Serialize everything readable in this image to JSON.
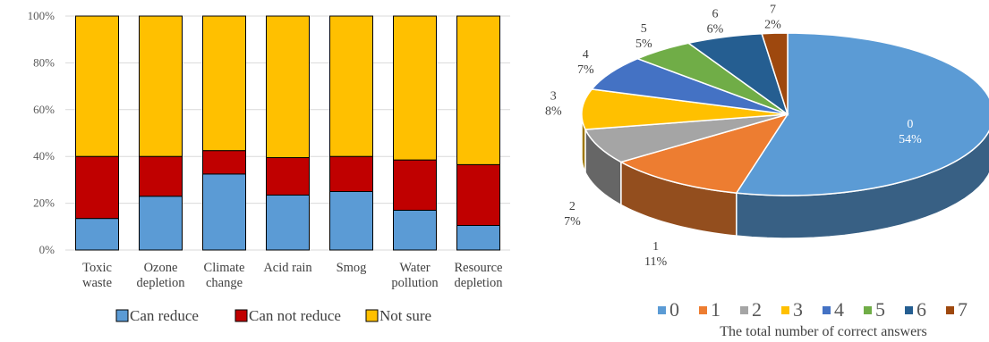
{
  "chart_data": [
    {
      "type": "bar",
      "stacked": true,
      "normalized": true,
      "categories": [
        [
          "Toxic",
          "waste"
        ],
        [
          "Ozone",
          "depletion"
        ],
        [
          "Climate",
          "change"
        ],
        [
          "Acid rain"
        ],
        [
          "Smog"
        ],
        [
          "Water",
          "pollution"
        ],
        [
          "Resource",
          "depletion"
        ]
      ],
      "yticks": [
        "0%",
        "20%",
        "40%",
        "60%",
        "80%",
        "100%"
      ],
      "ylim": [
        0,
        100
      ],
      "grid": true,
      "legend_position": "bottom",
      "series": [
        {
          "name": "Can reduce",
          "color": "#5b9bd5",
          "values": [
            13.5,
            23,
            32.5,
            23.5,
            25,
            17,
            10.5
          ]
        },
        {
          "name": "Can not reduce",
          "color": "#c00000",
          "values": [
            26.5,
            17,
            10,
            16,
            15,
            21.5,
            26
          ]
        },
        {
          "name": "Not sure",
          "color": "#ffc000",
          "values": [
            60,
            60,
            57.5,
            60.5,
            60,
            61.5,
            63.5
          ]
        }
      ]
    },
    {
      "type": "pie",
      "three_d": true,
      "title": "The total number of correct answers",
      "legend_position": "bottom",
      "slices": [
        {
          "label": "0",
          "percent_text": "54%",
          "value": 54,
          "color": "#5b9bd5"
        },
        {
          "label": "1",
          "percent_text": "11%",
          "value": 11,
          "color": "#ed7d31"
        },
        {
          "label": "2",
          "percent_text": "7%",
          "value": 7,
          "color": "#a5a5a5"
        },
        {
          "label": "3",
          "percent_text": "8%",
          "value": 8,
          "color": "#ffc000"
        },
        {
          "label": "4",
          "percent_text": "7%",
          "value": 7,
          "color": "#4472c4"
        },
        {
          "label": "5",
          "percent_text": "5%",
          "value": 5,
          "color": "#70ad47"
        },
        {
          "label": "6",
          "percent_text": "6%",
          "value": 6,
          "color": "#255e91"
        },
        {
          "label": "7",
          "percent_text": "2%",
          "value": 2,
          "color": "#9e480e"
        }
      ]
    }
  ]
}
